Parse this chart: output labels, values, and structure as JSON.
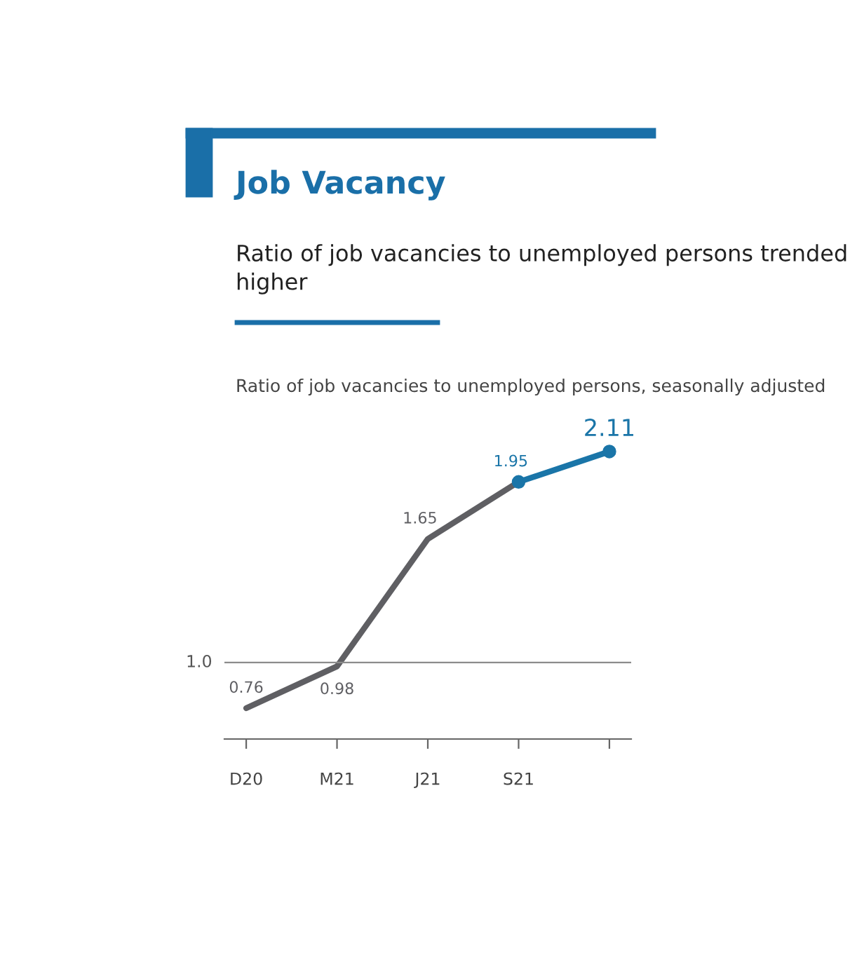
{
  "chart_data": {
    "type": "line",
    "title": "Job Vacancy",
    "subtitle": "Ratio of job vacancies to unemployed persons trended higher",
    "annotations": [
      "Ratio of job vacancies to unemployed persons, seasonally adjusted"
    ],
    "categories": [
      "D20",
      "M21",
      "J21",
      "S21",
      null
    ],
    "series": [
      {
        "color": "#5f5f63",
        "values": [
          0.76,
          0.98,
          1.65,
          1.95,
          null
        ],
        "value_labels": [
          "0.76",
          "0.98",
          "1.65",
          null,
          null
        ],
        "marker": "none"
      },
      {
        "color": "#1a75a8",
        "values": [
          null,
          null,
          null,
          1.95,
          2.11
        ],
        "value_labels": [
          null,
          null,
          null,
          "1.95",
          "2.11"
        ],
        "marker": "circle"
      }
    ],
    "ref_lines": [
      {
        "axis": "y",
        "value": 1.0,
        "label": "1.0",
        "color": "#8c8c8c"
      }
    ],
    "grid": false,
    "legend": false,
    "line_style": "solid"
  }
}
